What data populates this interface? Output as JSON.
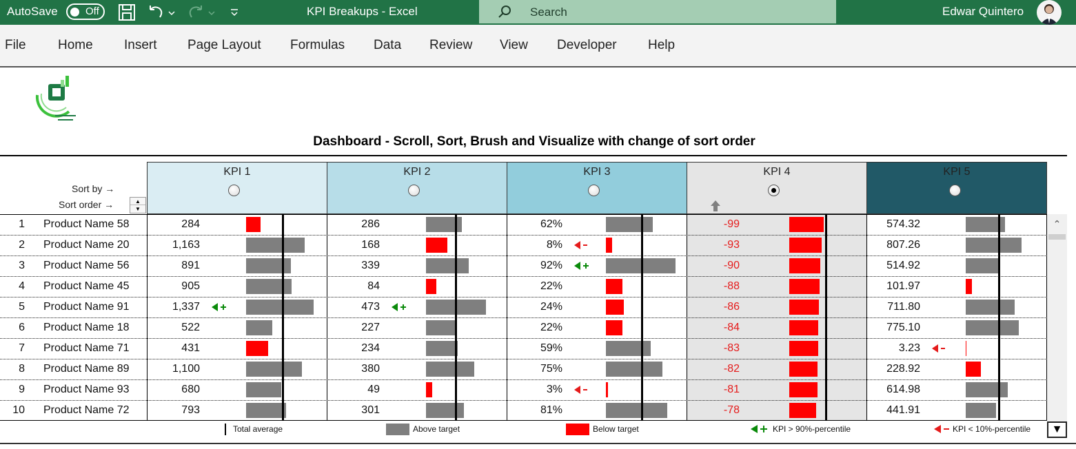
{
  "titlebar": {
    "autosave_label": "AutoSave",
    "autosave_state": "Off",
    "doc_title": "KPI Breakups  -  Excel",
    "search_placeholder": "Search",
    "user_name": "Edwar Quintero",
    "bg_color": "#217346"
  },
  "menu": {
    "items": [
      "File",
      "Home",
      "Insert",
      "Page Layout",
      "Formulas",
      "Data",
      "Review",
      "View",
      "Developer",
      "Help"
    ]
  },
  "dashboard": {
    "title": "Dashboard  - Scroll, Sort, Brush and Visualize with change of sort order",
    "sort_by_label": "Sort by →",
    "sort_order_label": "Sort order →",
    "kpis": [
      {
        "name": "KPI 1",
        "color": "#daedf3",
        "selected": false
      },
      {
        "name": "KPI 2",
        "color": "#b7dde8",
        "selected": false
      },
      {
        "name": "KPI 3",
        "color": "#92cddc",
        "selected": false
      },
      {
        "name": "KPI 4",
        "color": "#e5e5e5",
        "selected": true
      },
      {
        "name": "KPI 5",
        "color": "#215967",
        "selected": false
      }
    ],
    "rows": [
      {
        "rank": "1",
        "product": "Product Name 58",
        "k1": "284",
        "k2": "286",
        "k3": "62%",
        "k4": "-99",
        "k5": "574.32"
      },
      {
        "rank": "2",
        "product": "Product Name 20",
        "k1": "1,163",
        "k2": "168",
        "k3": "8%",
        "k4": "-93",
        "k5": "807.26"
      },
      {
        "rank": "3",
        "product": "Product Name 56",
        "k1": "891",
        "k2": "339",
        "k3": "92%",
        "k4": "-90",
        "k5": "514.92"
      },
      {
        "rank": "4",
        "product": "Product Name 45",
        "k1": "905",
        "k2": "84",
        "k3": "22%",
        "k4": "-88",
        "k5": "101.97"
      },
      {
        "rank": "5",
        "product": "Product Name 91",
        "k1": "1,337",
        "k2": "473",
        "k3": "24%",
        "k4": "-86",
        "k5": "711.80"
      },
      {
        "rank": "6",
        "product": "Product Name 18",
        "k1": "522",
        "k2": "227",
        "k3": "22%",
        "k4": "-84",
        "k5": "775.10"
      },
      {
        "rank": "7",
        "product": "Product Name 71",
        "k1": "431",
        "k2": "234",
        "k3": "59%",
        "k4": "-83",
        "k5": "3.23"
      },
      {
        "rank": "8",
        "product": "Product Name 89",
        "k1": "1,100",
        "k2": "380",
        "k3": "75%",
        "k4": "-82",
        "k5": "228.92"
      },
      {
        "rank": "9",
        "product": "Product Name 93",
        "k1": "680",
        "k2": "49",
        "k3": "3%",
        "k4": "-81",
        "k5": "614.98"
      },
      {
        "rank": "10",
        "product": "Product Name 72",
        "k1": "793",
        "k2": "301",
        "k3": "81%",
        "k4": "-78",
        "k5": "441.91"
      }
    ],
    "legend": {
      "total_average": "Total average",
      "above_target": "Above target",
      "below_target": "Below target",
      "high_percentile": "KPI > 90%-percentile",
      "low_percentile": "KPI < 10%-percentile"
    },
    "colors": {
      "above": "#7f7f7f",
      "below": "#ff0000",
      "flag_high": "#0a8a0a",
      "flag_low": "#e51b1b"
    }
  }
}
